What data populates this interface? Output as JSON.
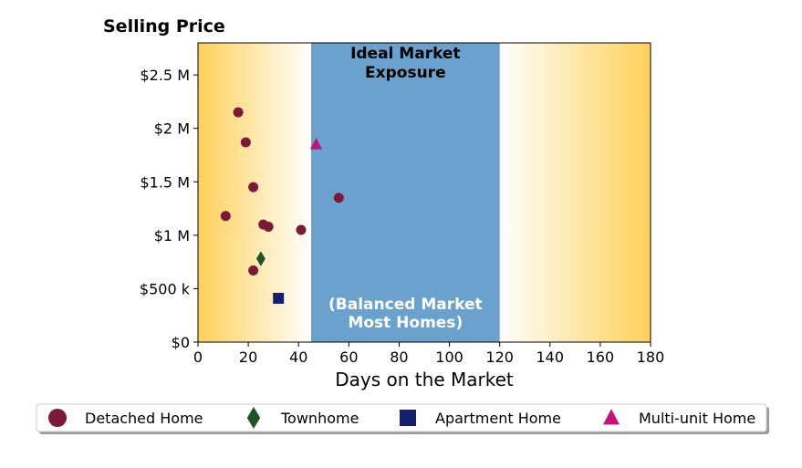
{
  "chart_data": {
    "type": "scatter",
    "title": "Selling Price",
    "xlabel": "Days on the Market",
    "ylabel": "",
    "xlim": [
      0,
      180
    ],
    "ylim": [
      0,
      2800000
    ],
    "x_ticks": [
      {
        "value": 0,
        "label": "0"
      },
      {
        "value": 20,
        "label": "20"
      },
      {
        "value": 40,
        "label": "40"
      },
      {
        "value": 60,
        "label": "60"
      },
      {
        "value": 80,
        "label": "80"
      },
      {
        "value": 100,
        "label": "100"
      },
      {
        "value": 120,
        "label": "120"
      },
      {
        "value": 140,
        "label": "140"
      },
      {
        "value": 160,
        "label": "160"
      },
      {
        "value": 180,
        "label": "180"
      }
    ],
    "y_ticks": [
      {
        "value": 0,
        "label": "$0"
      },
      {
        "value": 500000,
        "label": "$500 k"
      },
      {
        "value": 1000000,
        "label": "$1 M"
      },
      {
        "value": 1500000,
        "label": "$1.5 M"
      },
      {
        "value": 2000000,
        "label": "$2 M"
      },
      {
        "value": 2500000,
        "label": "$2.5 M"
      }
    ],
    "ideal_band": {
      "x_range": [
        45,
        120
      ],
      "label_top_line1": "Ideal Market",
      "label_top_line2": "Exposure",
      "label_bottom_line1": "(Balanced Market",
      "label_bottom_line2": "Most Homes)",
      "color": "#6aa1cd"
    },
    "gradient_color": "#ffd05a",
    "series": [
      {
        "name": "Detached Home",
        "marker": "circle",
        "color": "#7b1a35",
        "points": [
          {
            "x": 16,
            "y": 2150000
          },
          {
            "x": 19,
            "y": 1870000
          },
          {
            "x": 22,
            "y": 1450000
          },
          {
            "x": 11,
            "y": 1180000
          },
          {
            "x": 26,
            "y": 1100000
          },
          {
            "x": 28,
            "y": 1080000
          },
          {
            "x": 41,
            "y": 1050000
          },
          {
            "x": 56,
            "y": 1350000
          },
          {
            "x": 22,
            "y": 670000
          }
        ]
      },
      {
        "name": "Townhome",
        "marker": "diamond",
        "color": "#1f5226",
        "points": [
          {
            "x": 25,
            "y": 780000
          }
        ]
      },
      {
        "name": "Apartment Home",
        "marker": "square",
        "color": "#14206b",
        "points": [
          {
            "x": 32,
            "y": 410000
          }
        ]
      },
      {
        "name": "Multi-unit Home",
        "marker": "triangle",
        "color": "#c4127a",
        "points": [
          {
            "x": 47,
            "y": 1850000
          }
        ]
      }
    ]
  }
}
